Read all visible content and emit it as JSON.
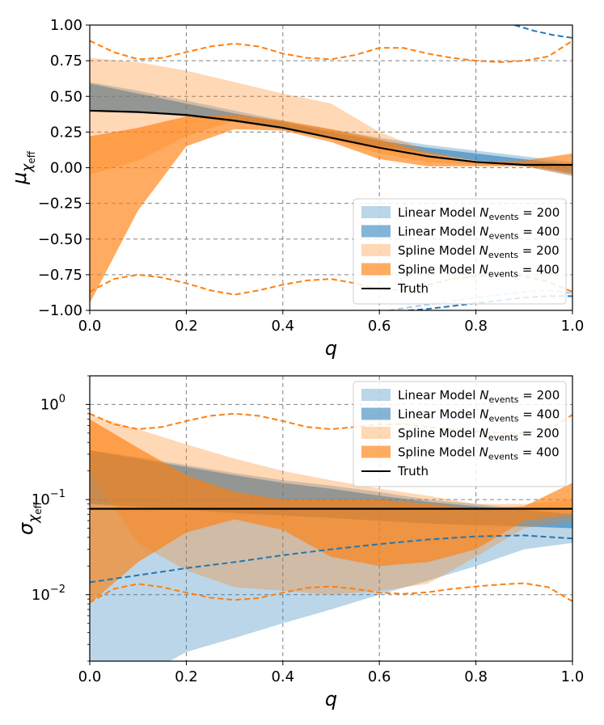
{
  "chart_data": [
    {
      "type": "area",
      "panel": "top",
      "xlabel": "q",
      "ylabel": "μ_χ_eff",
      "xlim": [
        0,
        1
      ],
      "ylim": [
        -1,
        1
      ],
      "xticks": [
        0.0,
        0.2,
        0.4,
        0.6,
        0.8,
        1.0
      ],
      "xtick_labels": [
        "0.0",
        "0.2",
        "0.4",
        "0.6",
        "0.8",
        "1.0"
      ],
      "yticks": [
        -1.0,
        -0.75,
        -0.5,
        -0.25,
        0.0,
        0.25,
        0.5,
        0.75,
        1.0
      ],
      "ytick_labels": [
        "−1.00",
        "−0.75",
        "−0.50",
        "−0.25",
        "0.00",
        "0.25",
        "0.50",
        "0.75",
        "1.00"
      ],
      "grid": true,
      "legend_position": "lower-right",
      "x": [
        0.0,
        0.1,
        0.2,
        0.3,
        0.4,
        0.5,
        0.6,
        0.7,
        0.8,
        0.9,
        1.0
      ],
      "bands": [
        {
          "name": "Linear Model N_events = 200",
          "color": "#1f77b4",
          "alpha": 0.3,
          "lower": [
            0.4,
            0.39,
            0.37,
            0.33,
            0.28,
            0.21,
            0.14,
            0.09,
            0.04,
            0.01,
            -0.06
          ],
          "upper": [
            0.6,
            0.54,
            0.47,
            0.4,
            0.33,
            0.27,
            0.21,
            0.16,
            0.12,
            0.08,
            0.04
          ]
        },
        {
          "name": "Linear Model N_events = 400",
          "color": "#1f77b4",
          "alpha": 0.55,
          "lower": [
            0.41,
            0.39,
            0.36,
            0.32,
            0.27,
            0.21,
            0.15,
            0.1,
            0.05,
            0.02,
            -0.04
          ],
          "upper": [
            0.59,
            0.52,
            0.45,
            0.38,
            0.32,
            0.25,
            0.19,
            0.14,
            0.1,
            0.06,
            0.02
          ]
        },
        {
          "name": "Spline Model N_events = 200",
          "color": "#ff7f0e",
          "alpha": 0.3,
          "lower": [
            -0.05,
            0.05,
            0.22,
            0.33,
            0.3,
            0.2,
            0.1,
            0.04,
            0.02,
            0.01,
            0.0
          ],
          "upper": [
            0.77,
            0.74,
            0.68,
            0.6,
            0.52,
            0.45,
            0.25,
            0.12,
            0.05,
            0.03,
            0.02
          ]
        },
        {
          "name": "Spline Model N_events = 400",
          "color": "#ff7f0e",
          "alpha": 0.65,
          "lower": [
            -0.95,
            -0.3,
            0.15,
            0.27,
            0.26,
            0.18,
            0.06,
            0.01,
            0.01,
            0.01,
            -0.05
          ],
          "upper": [
            0.22,
            0.28,
            0.36,
            0.37,
            0.33,
            0.27,
            0.2,
            0.1,
            0.04,
            0.05,
            0.1
          ]
        }
      ],
      "truth": {
        "name": "Truth",
        "color": "#000000",
        "values": [
          0.4,
          0.39,
          0.37,
          0.33,
          0.28,
          0.21,
          0.14,
          0.08,
          0.04,
          0.02,
          0.02
        ]
      },
      "prior_lines": [
        {
          "color": "#1f77b4",
          "style": "dashed",
          "x": [
            0.88,
            0.92,
            0.96,
            1.0
          ],
          "values": [
            1.0,
            0.96,
            0.93,
            0.91
          ]
        },
        {
          "color": "#aec7e8",
          "style": "dashed",
          "x": [
            0.62,
            0.7,
            0.8,
            0.9,
            0.95,
            1.0
          ],
          "values": [
            -1.0,
            -0.96,
            -0.91,
            -0.87,
            -0.86,
            -0.88
          ]
        },
        {
          "color": "#1f77b4",
          "style": "dashed",
          "x": [
            0.66,
            0.7,
            0.75,
            0.8,
            0.85,
            0.9,
            0.95,
            1.0
          ],
          "values": [
            -1.0,
            -0.99,
            -0.97,
            -0.95,
            -0.93,
            -0.91,
            -0.9,
            -0.9
          ]
        },
        {
          "color": "#ff7f0e",
          "style": "dashed",
          "x": [
            0.0,
            0.05,
            0.1,
            0.15,
            0.2,
            0.25,
            0.3,
            0.35,
            0.4,
            0.45,
            0.5,
            0.55,
            0.6,
            0.65,
            0.7,
            0.75,
            0.8,
            0.85,
            0.9,
            0.95,
            1.0
          ],
          "values": [
            0.89,
            0.81,
            0.76,
            0.77,
            0.81,
            0.85,
            0.87,
            0.85,
            0.8,
            0.77,
            0.76,
            0.79,
            0.84,
            0.84,
            0.8,
            0.77,
            0.75,
            0.74,
            0.75,
            0.78,
            0.89
          ]
        },
        {
          "color": "#ff7f0e",
          "style": "dashed",
          "x": [
            0.0,
            0.05,
            0.1,
            0.15,
            0.2,
            0.25,
            0.3,
            0.35,
            0.4,
            0.45,
            0.5,
            0.55,
            0.6,
            0.65,
            0.7,
            0.75,
            0.8,
            0.85,
            0.9,
            0.95,
            1.0
          ],
          "values": [
            -0.87,
            -0.78,
            -0.75,
            -0.77,
            -0.81,
            -0.86,
            -0.89,
            -0.86,
            -0.82,
            -0.79,
            -0.78,
            -0.81,
            -0.85,
            -0.86,
            -0.82,
            -0.78,
            -0.76,
            -0.75,
            -0.76,
            -0.8,
            -0.87
          ]
        }
      ],
      "legend": [
        "Linear Model N_events = 200",
        "Linear Model N_events = 400",
        "Spline Model N_events = 200",
        "Spline Model N_events = 400",
        "Truth"
      ]
    },
    {
      "type": "area",
      "panel": "bottom",
      "xlabel": "q",
      "ylabel": "σ_χ_eff",
      "yscale": "log",
      "xlim": [
        0,
        1
      ],
      "ylim": [
        0.002,
        2
      ],
      "xticks": [
        0.0,
        0.2,
        0.4,
        0.6,
        0.8,
        1.0
      ],
      "xtick_labels": [
        "0.0",
        "0.2",
        "0.4",
        "0.6",
        "0.8",
        "1.0"
      ],
      "yticks": [
        0.01,
        0.1,
        1
      ],
      "ytick_labels": [
        "10",
        "10",
        "10"
      ],
      "ytick_exponents": [
        "−2",
        "−1",
        "0"
      ],
      "grid": true,
      "legend_position": "upper-right",
      "x": [
        0.0,
        0.1,
        0.2,
        0.3,
        0.4,
        0.5,
        0.6,
        0.7,
        0.8,
        0.9,
        1.0
      ],
      "bands": [
        {
          "name": "Linear Model N_events = 200",
          "color": "#1f77b4",
          "alpha": 0.3,
          "lower": [
            0.002,
            0.0013,
            0.0025,
            0.0035,
            0.005,
            0.007,
            0.01,
            0.014,
            0.02,
            0.03,
            0.035
          ],
          "upper": [
            0.33,
            0.28,
            0.23,
            0.19,
            0.16,
            0.14,
            0.12,
            0.1,
            0.09,
            0.08,
            0.075
          ]
        },
        {
          "name": "Linear Model N_events = 400",
          "color": "#1f77b4",
          "alpha": 0.55,
          "lower": [
            0.09,
            0.084,
            0.078,
            0.072,
            0.068,
            0.064,
            0.06,
            0.056,
            0.054,
            0.052,
            0.05
          ],
          "upper": [
            0.33,
            0.27,
            0.22,
            0.18,
            0.15,
            0.13,
            0.11,
            0.095,
            0.085,
            0.078,
            0.07
          ]
        },
        {
          "name": "Spline Model N_events = 200",
          "color": "#ff7f0e",
          "alpha": 0.3,
          "lower": [
            0.2,
            0.035,
            0.018,
            0.012,
            0.011,
            0.01,
            0.011,
            0.013,
            0.025,
            0.05,
            0.06
          ],
          "upper": [
            0.78,
            0.55,
            0.38,
            0.27,
            0.2,
            0.16,
            0.13,
            0.11,
            0.09,
            0.09,
            0.1
          ]
        },
        {
          "name": "Spline Model N_events = 400",
          "color": "#ff7f0e",
          "alpha": 0.65,
          "lower": [
            0.008,
            0.022,
            0.045,
            0.062,
            0.048,
            0.025,
            0.02,
            0.022,
            0.03,
            0.06,
            0.07
          ],
          "upper": [
            0.7,
            0.35,
            0.18,
            0.12,
            0.1,
            0.1,
            0.1,
            0.09,
            0.08,
            0.085,
            0.15
          ]
        }
      ],
      "truth": {
        "name": "Truth",
        "color": "#000000",
        "values": [
          0.08,
          0.08,
          0.08,
          0.08,
          0.08,
          0.08,
          0.08,
          0.08,
          0.08,
          0.08,
          0.08
        ]
      },
      "prior_lines": [
        {
          "color": "#1f77b4",
          "style": "dashed",
          "x": [
            0.0,
            0.1,
            0.2,
            0.3,
            0.4,
            0.5,
            0.6,
            0.7,
            0.8,
            0.9,
            1.0
          ],
          "values": [
            0.0135,
            0.016,
            0.019,
            0.022,
            0.026,
            0.03,
            0.034,
            0.038,
            0.041,
            0.042,
            0.039
          ]
        },
        {
          "color": "#ff7f0e",
          "style": "dashed",
          "x": [
            0.0,
            0.05,
            0.1,
            0.15,
            0.2,
            0.25,
            0.3,
            0.35,
            0.4,
            0.45,
            0.5,
            0.55,
            0.6,
            0.65,
            0.7,
            0.75,
            0.8,
            0.85,
            0.9,
            0.95,
            1.0
          ],
          "values": [
            0.8,
            0.62,
            0.55,
            0.58,
            0.67,
            0.76,
            0.8,
            0.76,
            0.67,
            0.58,
            0.55,
            0.58,
            0.62,
            0.62,
            0.58,
            0.55,
            0.52,
            0.5,
            0.5,
            0.54,
            0.78
          ]
        },
        {
          "color": "#ff7f0e",
          "style": "dashed",
          "x": [
            0.0,
            0.05,
            0.1,
            0.15,
            0.2,
            0.25,
            0.3,
            0.35,
            0.4,
            0.45,
            0.5,
            0.55,
            0.6,
            0.65,
            0.7,
            0.75,
            0.8,
            0.85,
            0.9,
            0.95,
            1.0
          ],
          "values": [
            0.0083,
            0.0115,
            0.013,
            0.012,
            0.0105,
            0.0093,
            0.0088,
            0.0092,
            0.0105,
            0.0118,
            0.0122,
            0.0115,
            0.0105,
            0.0102,
            0.0106,
            0.0115,
            0.0122,
            0.0128,
            0.0132,
            0.012,
            0.0085
          ]
        }
      ],
      "legend": [
        "Linear Model N_events = 200",
        "Linear Model N_events = 400",
        "Spline Model N_events = 200",
        "Spline Model N_events = 400",
        "Truth"
      ]
    }
  ]
}
